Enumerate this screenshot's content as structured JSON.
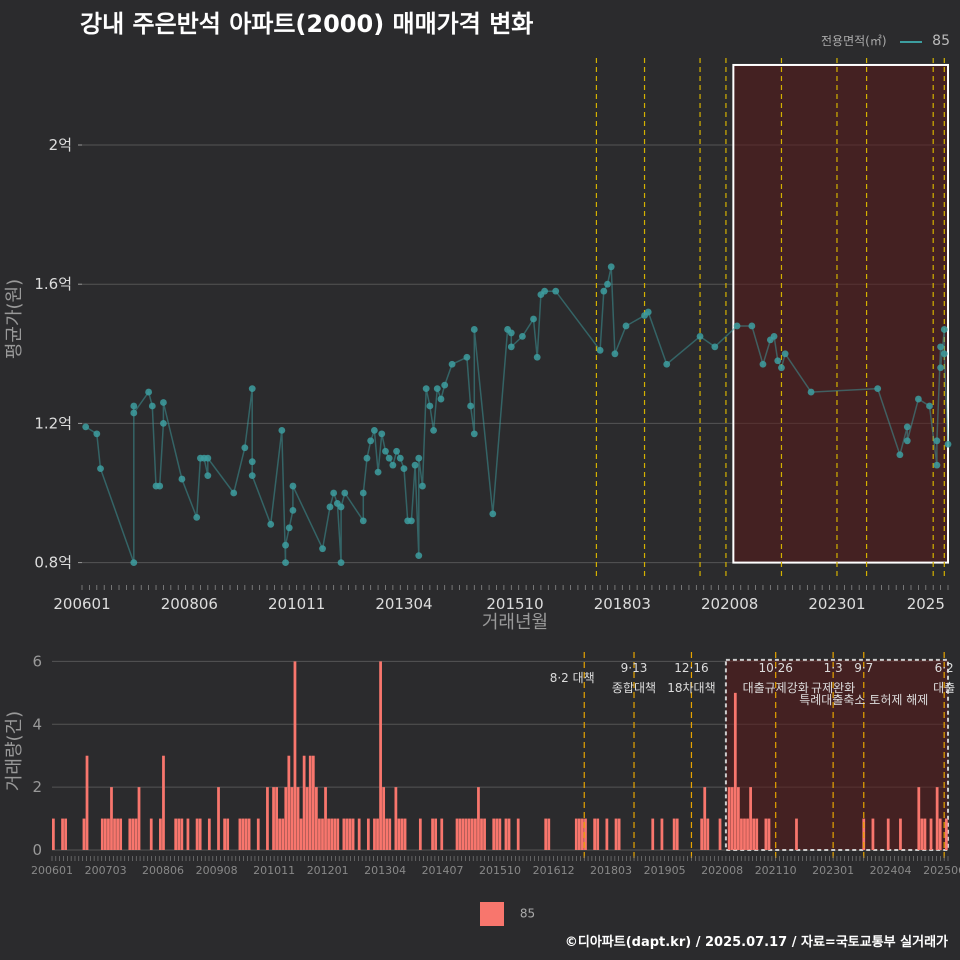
{
  "title": "강내 주은반석 아파트(2000) 매매가격 변화",
  "credit": "©디아파트(dapt.kr) / 2025.07.17 / 자료=국토교통부 실거래가",
  "legend_top": {
    "title": "전용면적(㎡)",
    "value": "85"
  },
  "legend_bottom": {
    "value": "85"
  },
  "colors": {
    "background": "#2b2b2d",
    "series": "#3d9ea0",
    "bars": "#f8766d",
    "policy_line": "#d4b100",
    "highlight": "#5a1a1a"
  },
  "chart_data": [
    {
      "type": "line",
      "xlabel": "거래년월",
      "ylabel": "평균가(원)",
      "x_ticks": [
        "200601",
        "200806",
        "201011",
        "201304",
        "201510",
        "201803",
        "202008",
        "202301",
        "2025"
      ],
      "y_ticks": [
        {
          "value": 0.8,
          "label": "0.8억"
        },
        {
          "value": 1.2,
          "label": "1.2억"
        },
        {
          "value": 1.6,
          "label": "1.6억"
        },
        {
          "value": 2.0,
          "label": "2억"
        }
      ],
      "ylim": [
        0.75,
        2.25
      ],
      "xlim": [
        "2006-01",
        "2025-07"
      ],
      "highlight_range": [
        "2020-09",
        "2025-07"
      ],
      "policy_dates": [
        "2017-08",
        "2018-09",
        "2019-12",
        "2020-07",
        "2021-10",
        "2023-01",
        "2023-09",
        "2025-03",
        "2025-06"
      ],
      "series": [
        {
          "name": "85",
          "points": [
            [
              "2006-02",
              1.19
            ],
            [
              "2006-05",
              1.17
            ],
            [
              "2006-06",
              1.07
            ],
            [
              "2007-03",
              0.8
            ],
            [
              "2007-03",
              1.25
            ],
            [
              "2007-03",
              1.23
            ],
            [
              "2007-07",
              1.29
            ],
            [
              "2007-08",
              1.25
            ],
            [
              "2007-09",
              1.02
            ],
            [
              "2007-10",
              1.02
            ],
            [
              "2007-11",
              1.2
            ],
            [
              "2007-11",
              1.26
            ],
            [
              "2008-04",
              1.04
            ],
            [
              "2008-08",
              0.93
            ],
            [
              "2008-09",
              1.1
            ],
            [
              "2008-10",
              1.1
            ],
            [
              "2008-11",
              1.05
            ],
            [
              "2008-11",
              1.1
            ],
            [
              "2009-06",
              1.0
            ],
            [
              "2009-09",
              1.13
            ],
            [
              "2009-11",
              1.3
            ],
            [
              "2009-11",
              1.09
            ],
            [
              "2009-11",
              1.05
            ],
            [
              "2010-04",
              0.91
            ],
            [
              "2010-07",
              1.18
            ],
            [
              "2010-08",
              0.8
            ],
            [
              "2010-08",
              0.85
            ],
            [
              "2010-09",
              0.9
            ],
            [
              "2010-10",
              0.95
            ],
            [
              "2010-10",
              1.02
            ],
            [
              "2011-06",
              0.84
            ],
            [
              "2011-08",
              0.96
            ],
            [
              "2011-09",
              1.0
            ],
            [
              "2011-10",
              0.97
            ],
            [
              "2011-11",
              0.8
            ],
            [
              "2011-11",
              0.96
            ],
            [
              "2011-12",
              1.0
            ],
            [
              "2012-05",
              0.92
            ],
            [
              "2012-05",
              1.0
            ],
            [
              "2012-06",
              1.1
            ],
            [
              "2012-07",
              1.15
            ],
            [
              "2012-08",
              1.18
            ],
            [
              "2012-09",
              1.06
            ],
            [
              "2012-10",
              1.17
            ],
            [
              "2012-11",
              1.12
            ],
            [
              "2012-12",
              1.1
            ],
            [
              "2013-01",
              1.08
            ],
            [
              "2013-02",
              1.12
            ],
            [
              "2013-03",
              1.1
            ],
            [
              "2013-04",
              1.07
            ],
            [
              "2013-05",
              0.92
            ],
            [
              "2013-06",
              0.92
            ],
            [
              "2013-07",
              1.08
            ],
            [
              "2013-08",
              0.82
            ],
            [
              "2013-08",
              1.1
            ],
            [
              "2013-09",
              1.02
            ],
            [
              "2013-10",
              1.3
            ],
            [
              "2013-11",
              1.25
            ],
            [
              "2013-12",
              1.18
            ],
            [
              "2014-01",
              1.3
            ],
            [
              "2014-02",
              1.27
            ],
            [
              "2014-03",
              1.31
            ],
            [
              "2014-05",
              1.37
            ],
            [
              "2014-09",
              1.39
            ],
            [
              "2014-10",
              1.25
            ],
            [
              "2014-11",
              1.17
            ],
            [
              "2014-11",
              1.47
            ],
            [
              "2015-04",
              0.94
            ],
            [
              "2015-08",
              1.47
            ],
            [
              "2015-09",
              1.46
            ],
            [
              "2015-09",
              1.42
            ],
            [
              "2015-12",
              1.45
            ],
            [
              "2016-03",
              1.5
            ],
            [
              "2016-04",
              1.39
            ],
            [
              "2016-05",
              1.57
            ],
            [
              "2016-06",
              1.58
            ],
            [
              "2016-09",
              1.58
            ],
            [
              "2017-09",
              1.41
            ],
            [
              "2017-10",
              1.58
            ],
            [
              "2017-11",
              1.6
            ],
            [
              "2017-12",
              1.65
            ],
            [
              "2018-01",
              1.4
            ],
            [
              "2018-04",
              1.48
            ],
            [
              "2018-09",
              1.51
            ],
            [
              "2018-10",
              1.52
            ],
            [
              "2019-03",
              1.37
            ],
            [
              "2019-12",
              1.45
            ],
            [
              "2020-04",
              1.42
            ],
            [
              "2020-10",
              1.48
            ],
            [
              "2021-02",
              1.48
            ],
            [
              "2021-05",
              1.37
            ],
            [
              "2021-07",
              1.44
            ],
            [
              "2021-08",
              1.45
            ],
            [
              "2021-09",
              1.38
            ],
            [
              "2021-10",
              1.36
            ],
            [
              "2021-11",
              1.4
            ],
            [
              "2022-06",
              1.29
            ],
            [
              "2023-12",
              1.3
            ],
            [
              "2024-06",
              1.11
            ],
            [
              "2024-08",
              1.19
            ],
            [
              "2024-08",
              1.15
            ],
            [
              "2024-11",
              1.27
            ],
            [
              "2025-02",
              1.25
            ],
            [
              "2025-04",
              1.08
            ],
            [
              "2025-04",
              1.15
            ],
            [
              "2025-05",
              1.42
            ],
            [
              "2025-05",
              1.36
            ],
            [
              "2025-06",
              1.47
            ],
            [
              "2025-06",
              1.4
            ],
            [
              "2025-07",
              1.14
            ]
          ]
        }
      ]
    },
    {
      "type": "bar",
      "xlabel": "",
      "ylabel": "거래량(건)",
      "x_ticks": [
        "200601",
        "200703",
        "200806",
        "200908",
        "201011",
        "201201",
        "201304",
        "201407",
        "201510",
        "201612",
        "201803",
        "201905",
        "202008",
        "202110",
        "202301",
        "202404",
        "202506"
      ],
      "y_ticks": [
        0,
        2,
        4,
        6
      ],
      "ylim": [
        0,
        6.3
      ],
      "annotations": [
        {
          "date": "2017-08",
          "lines": [
            "8·2 대책"
          ]
        },
        {
          "date": "2018-09",
          "lines": [
            "9·13",
            "종합대책"
          ]
        },
        {
          "date": "2019-12",
          "lines": [
            "12·16",
            "18차대책"
          ]
        },
        {
          "date": "2021-10",
          "lines": [
            "10·26",
            "대출규제강화"
          ]
        },
        {
          "date": "2023-01",
          "lines": [
            "1·3",
            "규제완화"
          ]
        },
        {
          "date": "2023-09",
          "lines": [
            "9·7",
            "특례대출축소 토허제 해제"
          ]
        },
        {
          "date": "2025-06",
          "lines": [
            "6·2",
            "대출"
          ]
        }
      ],
      "series": [
        {
          "name": "85",
          "values": [
            1,
            0,
            0,
            1,
            1,
            0,
            0,
            0,
            0,
            0,
            1,
            3,
            0,
            0,
            0,
            0,
            1,
            1,
            1,
            2,
            1,
            1,
            1,
            0,
            0,
            1,
            1,
            1,
            2,
            0,
            0,
            0,
            1,
            0,
            0,
            1,
            3,
            0,
            0,
            0,
            1,
            1,
            1,
            0,
            1,
            0,
            0,
            1,
            1,
            0,
            0,
            1,
            0,
            0,
            2,
            0,
            1,
            1,
            0,
            0,
            0,
            1,
            1,
            1,
            1,
            0,
            0,
            1,
            0,
            0,
            2,
            0,
            2,
            2,
            1,
            1,
            2,
            3,
            2,
            6,
            2,
            1,
            3,
            2,
            3,
            3,
            2,
            1,
            1,
            2,
            1,
            1,
            1,
            1,
            0,
            1,
            1,
            1,
            1,
            0,
            1,
            0,
            0,
            1,
            0,
            1,
            1,
            6,
            2,
            1,
            1,
            0,
            2,
            1,
            1,
            1,
            0,
            0,
            0,
            0,
            1,
            0,
            0,
            0,
            1,
            1,
            0,
            1,
            0,
            0,
            0,
            0,
            1,
            1,
            1,
            1,
            1,
            1,
            1,
            2,
            1,
            1,
            0,
            0,
            1,
            1,
            1,
            0,
            1,
            1,
            0,
            0,
            1,
            0,
            0,
            0,
            0,
            0,
            0,
            0,
            0,
            1,
            1,
            0,
            0,
            0,
            0,
            0,
            0,
            0,
            0,
            1,
            1,
            1,
            1,
            0,
            0,
            1,
            1,
            0,
            0,
            1,
            0,
            0,
            1,
            1,
            0,
            0,
            0,
            0,
            0,
            0,
            0,
            0,
            0,
            0,
            1,
            0,
            0,
            1,
            0,
            0,
            0,
            1,
            1,
            0,
            0,
            0,
            0,
            0,
            0,
            0,
            1,
            2,
            1,
            0,
            0,
            0,
            1,
            0,
            0,
            2,
            2,
            5,
            2,
            1,
            1,
            1,
            2,
            1,
            1,
            0,
            0,
            1,
            1,
            0,
            0,
            0,
            0,
            0,
            0,
            0,
            0,
            1,
            0,
            0,
            0,
            0,
            0,
            0,
            0,
            0,
            0,
            0,
            0,
            0,
            0,
            0,
            0,
            0,
            0,
            0,
            0,
            0,
            0,
            1,
            0,
            0,
            1,
            0,
            0,
            0,
            0,
            1,
            0,
            0,
            0,
            1,
            0,
            0,
            0,
            0,
            0,
            2,
            1,
            1,
            0,
            1,
            0,
            2,
            1,
            0,
            1
          ]
        }
      ]
    }
  ]
}
